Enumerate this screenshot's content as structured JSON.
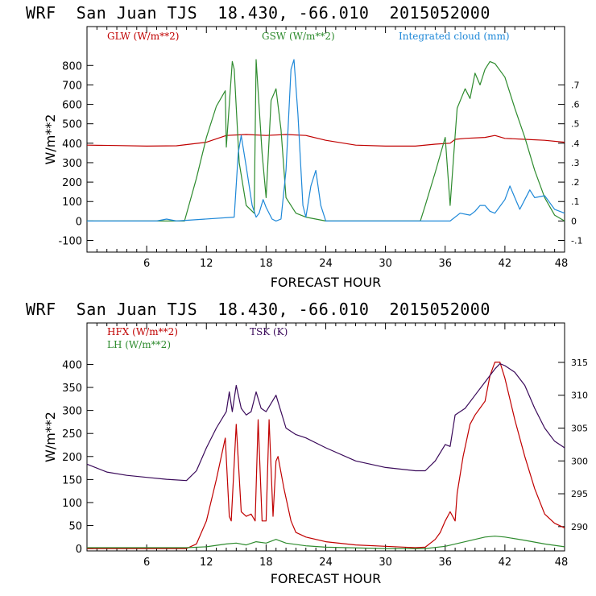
{
  "charts": [
    {
      "title": "WRF  San Juan TJS  18.430, -66.010  2015052000",
      "xlabel": "FORECAST HOUR",
      "ylabel": "W/m**2",
      "x_ticks": [
        6,
        12,
        18,
        24,
        30,
        36,
        42,
        48
      ],
      "y_ticks": [
        -100,
        0,
        100,
        200,
        300,
        400,
        500,
        600,
        700,
        800
      ],
      "y2_ticks": [
        ".7",
        ".6",
        ".5",
        ".4",
        ".3",
        ".2",
        ".1",
        "0",
        "-.1"
      ],
      "legend": [
        {
          "label": "GLW (W/m**2)",
          "color": "#c00000"
        },
        {
          "label": "GSW (W/m**2)",
          "color": "#2e8b2e"
        },
        {
          "label": "Integrated cloud (mm)",
          "color": "#1e88d8"
        }
      ]
    },
    {
      "title": "WRF  San Juan TJS  18.430, -66.010  2015052000",
      "xlabel": "FORECAST HOUR",
      "ylabel": "W/m**2",
      "x_ticks": [
        6,
        12,
        18,
        24,
        30,
        36,
        42,
        48
      ],
      "y_ticks": [
        0,
        50,
        100,
        150,
        200,
        250,
        300,
        350,
        400
      ],
      "y2_ticks": [
        "315",
        "310",
        "305",
        "300",
        "295",
        "290"
      ],
      "legend": [
        {
          "label": "HFX (W/m**2)",
          "color": "#c00000"
        },
        {
          "label": "LH  (W/m**2)",
          "color": "#2e8b2e"
        },
        {
          "label": "TSK (K)",
          "color": "#3a0a5a"
        }
      ]
    }
  ],
  "chart_data": [
    {
      "type": "line",
      "title": "WRF  San Juan TJS  18.430, -66.010  2015052000",
      "xlabel": "FORECAST HOUR",
      "ylabel": "W/m**2",
      "xlim": [
        0,
        48
      ],
      "ylim": [
        -160,
        1000
      ],
      "y2lim": [
        -0.16,
        1.0
      ],
      "series": [
        {
          "name": "GLW (W/m**2)",
          "color": "#c00000",
          "axis": "y",
          "x": [
            0,
            3,
            6,
            9,
            12,
            14,
            16,
            18,
            20,
            22,
            24,
            27,
            30,
            33,
            35,
            36.5,
            37,
            38,
            40,
            41,
            42,
            44,
            46,
            48
          ],
          "y": [
            390,
            388,
            385,
            387,
            405,
            440,
            445,
            440,
            445,
            440,
            415,
            390,
            385,
            385,
            395,
            400,
            420,
            425,
            430,
            440,
            425,
            420,
            415,
            405
          ]
        },
        {
          "name": "GSW (W/m**2)",
          "color": "#2e8b2e",
          "axis": "y",
          "x": [
            0,
            9.8,
            11,
            12,
            13,
            13.9,
            14,
            14.6,
            14.8,
            15.3,
            16,
            16.8,
            17,
            17.6,
            18,
            18.5,
            19,
            19.5,
            20,
            21,
            22,
            23,
            24,
            33.5,
            34,
            35,
            36,
            36.5,
            37,
            37.2,
            38,
            38.5,
            39,
            39.5,
            40,
            40.5,
            41,
            42,
            43,
            44,
            45,
            46,
            47,
            48
          ],
          "y": [
            0,
            0,
            220,
            430,
            590,
            670,
            380,
            820,
            780,
            300,
            80,
            40,
            830,
            350,
            120,
            620,
            680,
            470,
            120,
            40,
            20,
            10,
            0,
            0,
            80,
            250,
            430,
            80,
            440,
            580,
            680,
            630,
            760,
            700,
            780,
            820,
            810,
            740,
            580,
            430,
            260,
            120,
            30,
            0
          ]
        },
        {
          "name": "Integrated cloud (mm)",
          "color": "#1e88d8",
          "axis": "y2",
          "x": [
            0,
            7,
            8,
            9,
            14.8,
            15.2,
            15.5,
            16,
            16.6,
            17,
            17.3,
            17.7,
            18,
            18.6,
            19,
            19.5,
            20,
            20.5,
            20.8,
            21.2,
            21.7,
            22,
            22.5,
            23,
            23.5,
            24,
            36.5,
            37.5,
            38.5,
            39,
            39.5,
            40,
            40.5,
            41,
            42,
            42.5,
            43,
            43.5,
            44,
            44.5,
            45,
            46,
            47,
            48
          ],
          "y": [
            0,
            0,
            0.01,
            0,
            0.02,
            0.35,
            0.44,
            0.28,
            0.08,
            0.02,
            0.04,
            0.11,
            0.07,
            0.01,
            0,
            0.01,
            0.26,
            0.78,
            0.83,
            0.55,
            0.08,
            0.02,
            0.18,
            0.26,
            0.08,
            0,
            0,
            0.04,
            0.03,
            0.05,
            0.08,
            0.08,
            0.05,
            0.04,
            0.11,
            0.18,
            0.12,
            0.06,
            0.11,
            0.16,
            0.12,
            0.13,
            0.06,
            0.04
          ]
        }
      ]
    },
    {
      "type": "line",
      "title": "WRF  San Juan TJS  18.430, -66.010  2015052000",
      "xlabel": "FORECAST HOUR",
      "ylabel": "W/m**2",
      "xlim": [
        0,
        48
      ],
      "ylim": [
        -5,
        490
      ],
      "y2lim": [
        286.3,
        321
      ],
      "series": [
        {
          "name": "HFX (W/m**2)",
          "color": "#c00000",
          "axis": "y",
          "x": [
            0,
            10,
            11,
            12,
            13,
            13.9,
            14.3,
            14.5,
            15,
            15.5,
            16,
            16.5,
            16.9,
            17.2,
            17.6,
            18,
            18.3,
            18.7,
            19,
            19.2,
            19.8,
            20.5,
            21,
            22,
            24,
            27,
            30,
            33,
            34,
            35,
            35.5,
            36,
            36.5,
            37,
            37.2,
            37.8,
            38.5,
            39,
            40,
            40.5,
            41,
            41.5,
            42,
            43,
            44,
            45,
            46,
            47,
            48
          ],
          "y": [
            0,
            0,
            10,
            60,
            150,
            240,
            70,
            60,
            270,
            80,
            70,
            75,
            60,
            280,
            60,
            60,
            280,
            70,
            190,
            200,
            130,
            60,
            35,
            25,
            15,
            8,
            5,
            2,
            3,
            20,
            35,
            60,
            80,
            60,
            120,
            200,
            270,
            290,
            320,
            375,
            405,
            405,
            370,
            280,
            200,
            130,
            75,
            55,
            45
          ]
        },
        {
          "name": "LH  (W/m**2)",
          "color": "#2e8b2e",
          "axis": "y",
          "x": [
            0,
            10,
            12,
            14,
            15,
            16,
            17,
            18,
            19,
            20,
            22,
            24,
            30,
            34,
            36,
            38,
            40,
            41,
            42,
            44,
            46,
            48
          ],
          "y": [
            2,
            2,
            4,
            10,
            12,
            8,
            15,
            12,
            20,
            12,
            6,
            3,
            0,
            0,
            5,
            15,
            25,
            27,
            25,
            18,
            10,
            4
          ]
        },
        {
          "name": "TSK (K)",
          "color": "#3a0a5a",
          "axis": "y2",
          "x": [
            0,
            2,
            4,
            6,
            8,
            10,
            11,
            12,
            13,
            14,
            14.3,
            14.6,
            15,
            15.5,
            16,
            16.5,
            17,
            17.5,
            18,
            19,
            20,
            21,
            22,
            24,
            27,
            30,
            33,
            34,
            35,
            36,
            36.5,
            37,
            38,
            39,
            40,
            41,
            41.5,
            42,
            43,
            44,
            45,
            46,
            47,
            48
          ],
          "y": [
            299.5,
            298.3,
            297.8,
            297.5,
            297.2,
            297,
            298.5,
            302,
            305,
            307.5,
            310.5,
            307.5,
            311.5,
            308,
            307,
            307.5,
            310.5,
            308,
            307.5,
            310,
            305,
            304,
            303.5,
            302,
            300,
            299,
            298.5,
            298.5,
            300,
            302.5,
            302.2,
            307,
            308,
            310,
            312,
            314,
            314.8,
            314.5,
            313.5,
            311.5,
            308,
            305,
            303,
            302
          ]
        }
      ]
    }
  ]
}
